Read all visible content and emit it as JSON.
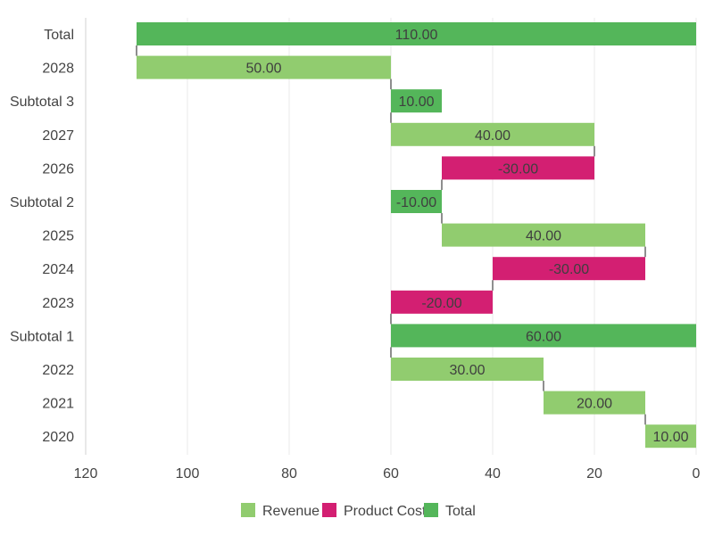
{
  "chart_data": {
    "type": "bar",
    "orientation": "horizontal",
    "reversed_x": true,
    "xlim": [
      0,
      120
    ],
    "x_ticks": [
      120,
      100,
      80,
      60,
      40,
      20,
      0
    ],
    "grid": true,
    "legend_position": "bottom-center",
    "categories": [
      "Total",
      "2028",
      "Subtotal 3",
      "2027",
      "2026",
      "Subtotal 2",
      "2025",
      "2024",
      "2023",
      "Subtotal 1",
      "2022",
      "2021",
      "2020"
    ],
    "bars": [
      {
        "category": "Total",
        "start": 0,
        "end": 110,
        "label": "110.00",
        "series": "Total"
      },
      {
        "category": "2028",
        "start": 60,
        "end": 110,
        "label": "50.00",
        "series": "Revenue"
      },
      {
        "category": "Subtotal 3",
        "start": 50,
        "end": 60,
        "label": "10.00",
        "series": "Total"
      },
      {
        "category": "2027",
        "start": 20,
        "end": 60,
        "label": "40.00",
        "series": "Revenue"
      },
      {
        "category": "2026",
        "start": 20,
        "end": 50,
        "label": "-30.00",
        "series": "Product Cost"
      },
      {
        "category": "Subtotal 2",
        "start": 50,
        "end": 60,
        "label": "-10.00",
        "series": "Total"
      },
      {
        "category": "2025",
        "start": 10,
        "end": 50,
        "label": "40.00",
        "series": "Revenue"
      },
      {
        "category": "2024",
        "start": 10,
        "end": 40,
        "label": "-30.00",
        "series": "Product Cost"
      },
      {
        "category": "2023",
        "start": 40,
        "end": 60,
        "label": "-20.00",
        "series": "Product Cost"
      },
      {
        "category": "Subtotal 1",
        "start": 0,
        "end": 60,
        "label": "60.00",
        "series": "Total"
      },
      {
        "category": "2022",
        "start": 30,
        "end": 60,
        "label": "30.00",
        "series": "Revenue"
      },
      {
        "category": "2021",
        "start": 10,
        "end": 30,
        "label": "20.00",
        "series": "Revenue"
      },
      {
        "category": "2020",
        "start": 0,
        "end": 10,
        "label": "10.00",
        "series": "Revenue"
      }
    ],
    "connectors": [
      {
        "from": "Total",
        "to": "2028",
        "value": 110
      },
      {
        "from": "2028",
        "to": "Subtotal 3",
        "value": 60
      },
      {
        "from": "Subtotal 3",
        "to": "2027",
        "value": 60
      },
      {
        "from": "2027",
        "to": "2026",
        "value": 20
      },
      {
        "from": "2026",
        "to": "Subtotal 2",
        "value": 50
      },
      {
        "from": "Subtotal 2",
        "to": "2025",
        "value": 50
      },
      {
        "from": "2025",
        "to": "2024",
        "value": 10
      },
      {
        "from": "2024",
        "to": "2023",
        "value": 40
      },
      {
        "from": "2023",
        "to": "Subtotal 1",
        "value": 60
      },
      {
        "from": "Subtotal 1",
        "to": "2022",
        "value": 60
      },
      {
        "from": "2022",
        "to": "2021",
        "value": 30
      },
      {
        "from": "2021",
        "to": "2020",
        "value": 10
      }
    ],
    "legend": [
      {
        "key": "Revenue",
        "label": "Revenue",
        "color": "#91cc6f"
      },
      {
        "key": "Product Cost",
        "label": "Product Cost",
        "color": "#d31f72"
      },
      {
        "key": "Total",
        "label": "Total",
        "color": "#54b65a"
      }
    ],
    "colors": {
      "grid": "#e8e8e8",
      "axis": "#d0d0d0",
      "connector": "#444444",
      "tick_text": "#444444",
      "label_text": "#3f3f3f"
    }
  }
}
